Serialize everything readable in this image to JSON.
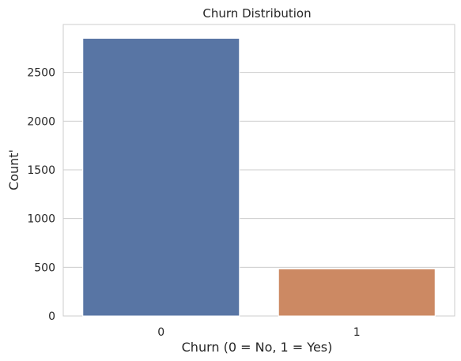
{
  "chart_data": {
    "type": "bar",
    "title": "Churn Distribution",
    "xlabel": "Churn (0 = No, 1 = Yes)",
    "ylabel": "Count'",
    "categories": [
      "0",
      "1"
    ],
    "values": [
      2850,
      483
    ],
    "ylim": [
      0,
      2992
    ],
    "yticks": [
      0,
      500,
      1000,
      1500,
      2000,
      2500
    ],
    "grid": "horizontal",
    "colors": [
      "#5875a4",
      "#cc8963"
    ]
  }
}
